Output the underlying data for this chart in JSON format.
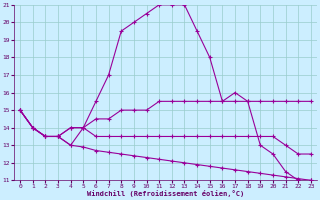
{
  "xlabel": "Windchill (Refroidissement éolien,°C)",
  "background_color": "#cceeff",
  "grid_color": "#99cccc",
  "line_color": "#990099",
  "x": [
    0,
    1,
    2,
    3,
    4,
    5,
    6,
    7,
    8,
    9,
    10,
    11,
    12,
    13,
    14,
    15,
    16,
    17,
    18,
    19,
    20,
    21,
    22,
    23
  ],
  "line1": [
    15,
    14,
    13.5,
    13.5,
    13,
    12.9,
    12.7,
    12.6,
    12.5,
    12.4,
    12.3,
    12.2,
    12.1,
    12.0,
    11.9,
    11.8,
    11.7,
    11.6,
    11.5,
    11.4,
    11.3,
    11.2,
    11.1,
    11
  ],
  "line2": [
    15,
    14,
    13.5,
    13.5,
    14,
    14,
    13.5,
    13.5,
    13.5,
    13.5,
    13.5,
    13.5,
    13.5,
    13.5,
    13.5,
    13.5,
    13.5,
    13.5,
    13.5,
    13.5,
    13.5,
    13,
    12.5,
    12.5
  ],
  "line3": [
    15,
    14,
    13.5,
    13.5,
    14,
    14,
    14.5,
    14.5,
    15,
    15,
    15,
    15.5,
    15.5,
    15.5,
    15.5,
    15.5,
    15.5,
    15.5,
    15.5,
    15.5,
    15.5,
    15.5,
    15.5,
    15.5
  ],
  "line4": [
    15,
    14,
    13.5,
    13.5,
    13,
    14,
    15.5,
    17,
    19.5,
    20,
    20.5,
    21,
    21,
    21,
    19.5,
    18,
    15.5,
    16,
    15.5,
    13,
    12.5,
    11.5,
    11,
    11
  ],
  "ylim": [
    11,
    21
  ],
  "xlim": [
    0,
    23
  ],
  "yticks": [
    11,
    12,
    13,
    14,
    15,
    16,
    17,
    18,
    19,
    20,
    21
  ],
  "xticks": [
    0,
    1,
    2,
    3,
    4,
    5,
    6,
    7,
    8,
    9,
    10,
    11,
    12,
    13,
    14,
    15,
    16,
    17,
    18,
    19,
    20,
    21,
    22,
    23
  ]
}
